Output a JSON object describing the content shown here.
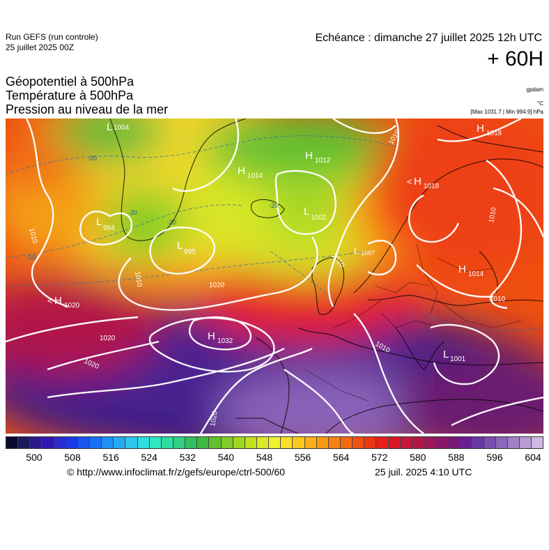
{
  "header": {
    "run_title": "Run GEFS (run controle)",
    "run_date": "25 juillet 2025 00Z",
    "echeance": "Echéance : dimanche 27 juillet 2025 12h UTC",
    "lead": "+ 60H"
  },
  "params": {
    "p1": "Géopotentiel à 500hPa",
    "p2": "Température à 500hPa",
    "p3": "Pression au niveau de la mer"
  },
  "units": {
    "gpdam": "gpdam",
    "celsius": "°C",
    "maxmin": "[Max 1031.7 | Min 994.9] hPa"
  },
  "map": {
    "pressure_systems": [
      {
        "type": "H",
        "value": "1018"
      },
      {
        "type": "H",
        "value": "1012"
      },
      {
        "type": "H",
        "value": "1014"
      },
      {
        "type": "L",
        "value": "1004"
      },
      {
        "type": "L",
        "value": "994"
      },
      {
        "type": "L",
        "value": "995"
      },
      {
        "type": "L",
        "value": "1002"
      },
      {
        "type": "H",
        "value": "1018"
      },
      {
        "type": "L",
        "value": "1007"
      },
      {
        "type": "H",
        "value": "1014"
      },
      {
        "type": "H",
        "value": "1020"
      },
      {
        "type": "H",
        "value": "1032"
      },
      {
        "type": "L",
        "value": "1001"
      }
    ],
    "isobar_labels": [
      "1010",
      "1010",
      "1010",
      "1020",
      "1020",
      "1020",
      "1020",
      "1010",
      "1010",
      "1010",
      "1010"
    ],
    "temp_labels": [
      "-20",
      "-20",
      "-20",
      "-20",
      "-10"
    ]
  },
  "color_scale": {
    "colors": [
      "#0a0a2a",
      "#1a1a5c",
      "#2a1a8a",
      "#3018b0",
      "#2a2ad0",
      "#1a3ae8",
      "#1a55f0",
      "#1a70f5",
      "#2090f5",
      "#28aaf0",
      "#30c4ea",
      "#30dde0",
      "#30e8c0",
      "#30dca0",
      "#30d080",
      "#30c060",
      "#40b840",
      "#60c030",
      "#80cc28",
      "#a0d820",
      "#c0e020",
      "#dce828",
      "#f0f030",
      "#f8e028",
      "#fcc820",
      "#fcb018",
      "#fc9810",
      "#f88010",
      "#f46810",
      "#f05010",
      "#ec3810",
      "#e82018",
      "#d81828",
      "#c41838",
      "#b01848",
      "#9c1858",
      "#8a1868",
      "#7a1878",
      "#6a2090",
      "#6a38a0",
      "#7850b0",
      "#8a68bc",
      "#a080c8",
      "#b89ad4",
      "#d0b8e0"
    ],
    "labels": [
      "500",
      "508",
      "516",
      "524",
      "532",
      "540",
      "548",
      "556",
      "564",
      "572",
      "580",
      "588",
      "596",
      "604"
    ]
  },
  "footer": {
    "credit": "© http://www.infoclimat.fr/z/gefs/europe/ctrl-500/60",
    "generated": "25 juil. 2025  4:10 UTC"
  }
}
